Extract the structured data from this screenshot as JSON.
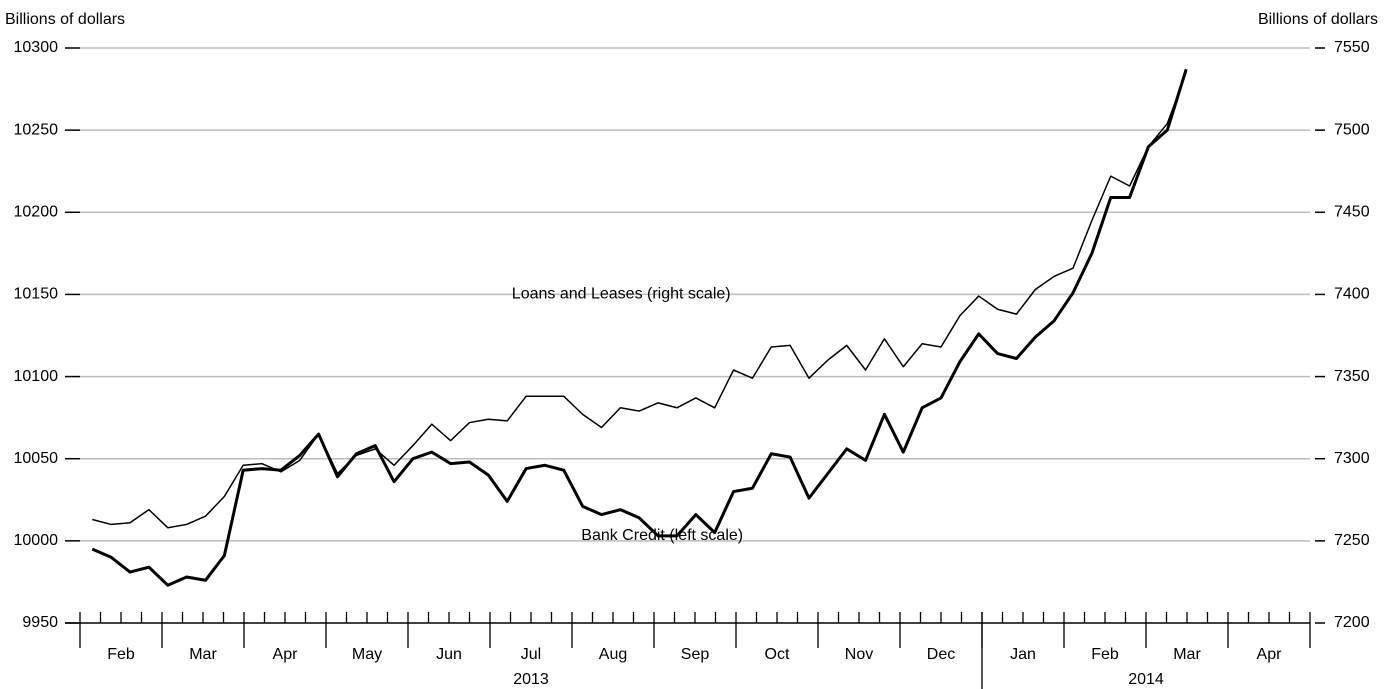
{
  "chart_data": {
    "type": "line",
    "ylabel": "Billions of dollars",
    "y2label": "Billions of dollars",
    "xlim": [
      0,
      15
    ],
    "xticks": [
      {
        "value": 0.5,
        "label": "Feb"
      },
      {
        "value": 1.5,
        "label": "Mar"
      },
      {
        "value": 2.5,
        "label": "Apr"
      },
      {
        "value": 3.5,
        "label": "May"
      },
      {
        "value": 4.5,
        "label": "Jun"
      },
      {
        "value": 5.5,
        "label": "Jul"
      },
      {
        "value": 6.5,
        "label": "Aug"
      },
      {
        "value": 7.5,
        "label": "Sep"
      },
      {
        "value": 8.5,
        "label": "Oct"
      },
      {
        "value": 9.5,
        "label": "Nov"
      },
      {
        "value": 10.5,
        "label": "Dec"
      },
      {
        "value": 11.5,
        "label": "Jan"
      },
      {
        "value": 12.5,
        "label": "Feb"
      },
      {
        "value": 13.5,
        "label": "Mar"
      },
      {
        "value": 14.5,
        "label": "Apr"
      }
    ],
    "xgroups": [
      {
        "value": 5.5,
        "label": "2013"
      },
      {
        "value": 13,
        "label": "2014"
      }
    ],
    "ylim": [
      9950,
      10300
    ],
    "yticks": [
      9950,
      10000,
      10050,
      10100,
      10150,
      10200,
      10250,
      10300
    ],
    "y2lim": [
      7200,
      7550
    ],
    "y2ticks": [
      7200,
      7250,
      7300,
      7350,
      7400,
      7450,
      7500,
      7550
    ],
    "grid": true,
    "x": [
      0.15,
      0.38,
      0.61,
      0.84,
      1.07,
      1.3,
      1.53,
      1.76,
      1.99,
      2.22,
      2.45,
      2.68,
      2.91,
      3.14,
      3.37,
      3.6,
      3.83,
      4.06,
      4.29,
      4.52,
      4.75,
      4.98,
      5.21,
      5.44,
      5.67,
      5.9,
      6.13,
      6.36,
      6.59,
      6.82,
      7.05,
      7.28,
      7.51,
      7.74,
      7.97,
      8.2,
      8.43,
      8.66,
      8.89,
      9.12,
      9.35,
      9.58,
      9.81,
      10.04,
      10.27,
      10.5,
      10.73,
      10.96,
      11.19,
      11.42,
      11.65,
      11.88,
      12.11,
      12.34,
      12.57,
      12.8,
      13.03,
      13.26,
      13.49
    ],
    "series": [
      {
        "name": "Bank Credit (left scale)",
        "color": "#000000",
        "width": 3,
        "label_at": [
          7.1,
          10003
        ],
        "values": [
          9995,
          9990,
          9981,
          9984,
          9973,
          9978,
          9976,
          9991,
          10043,
          10044,
          10043,
          10052,
          10065,
          10039,
          10053,
          10058,
          10036,
          10050,
          10054,
          10047,
          10048,
          10040,
          10024,
          10044,
          10046,
          10043,
          10021,
          10016,
          10019,
          10014,
          10003,
          10003,
          10016,
          10005,
          10030,
          10032,
          10053,
          10051,
          10026,
          10041,
          10056,
          10049,
          10077,
          10054,
          10081,
          10087,
          10109,
          10126,
          10114,
          10111,
          10124,
          10134,
          10151,
          10175,
          10209,
          10209,
          10240,
          10250,
          10287
        ]
      },
      {
        "name": "Loans and Leases (right scale)",
        "color": "#000000",
        "width": 1.5,
        "axis": "y2",
        "label_at": [
          6.6,
          7400
        ],
        "values": [
          7263,
          7260,
          7261,
          7269,
          7258,
          7260,
          7265,
          7277,
          7296,
          7297,
          7292,
          7299,
          7315,
          7291,
          7302,
          7306,
          7296,
          7308,
          7321,
          7311,
          7322,
          7324,
          7323,
          7338,
          7338,
          7338,
          7327,
          7319,
          7331,
          7329,
          7334,
          7331,
          7337,
          7331,
          7354,
          7349,
          7368,
          7369,
          7349,
          7360,
          7369,
          7354,
          7373,
          7356,
          7370,
          7368,
          7387,
          7399,
          7391,
          7388,
          7403,
          7411,
          7416,
          7445,
          7472,
          7466,
          7490,
          7504,
          7535
        ]
      }
    ]
  }
}
